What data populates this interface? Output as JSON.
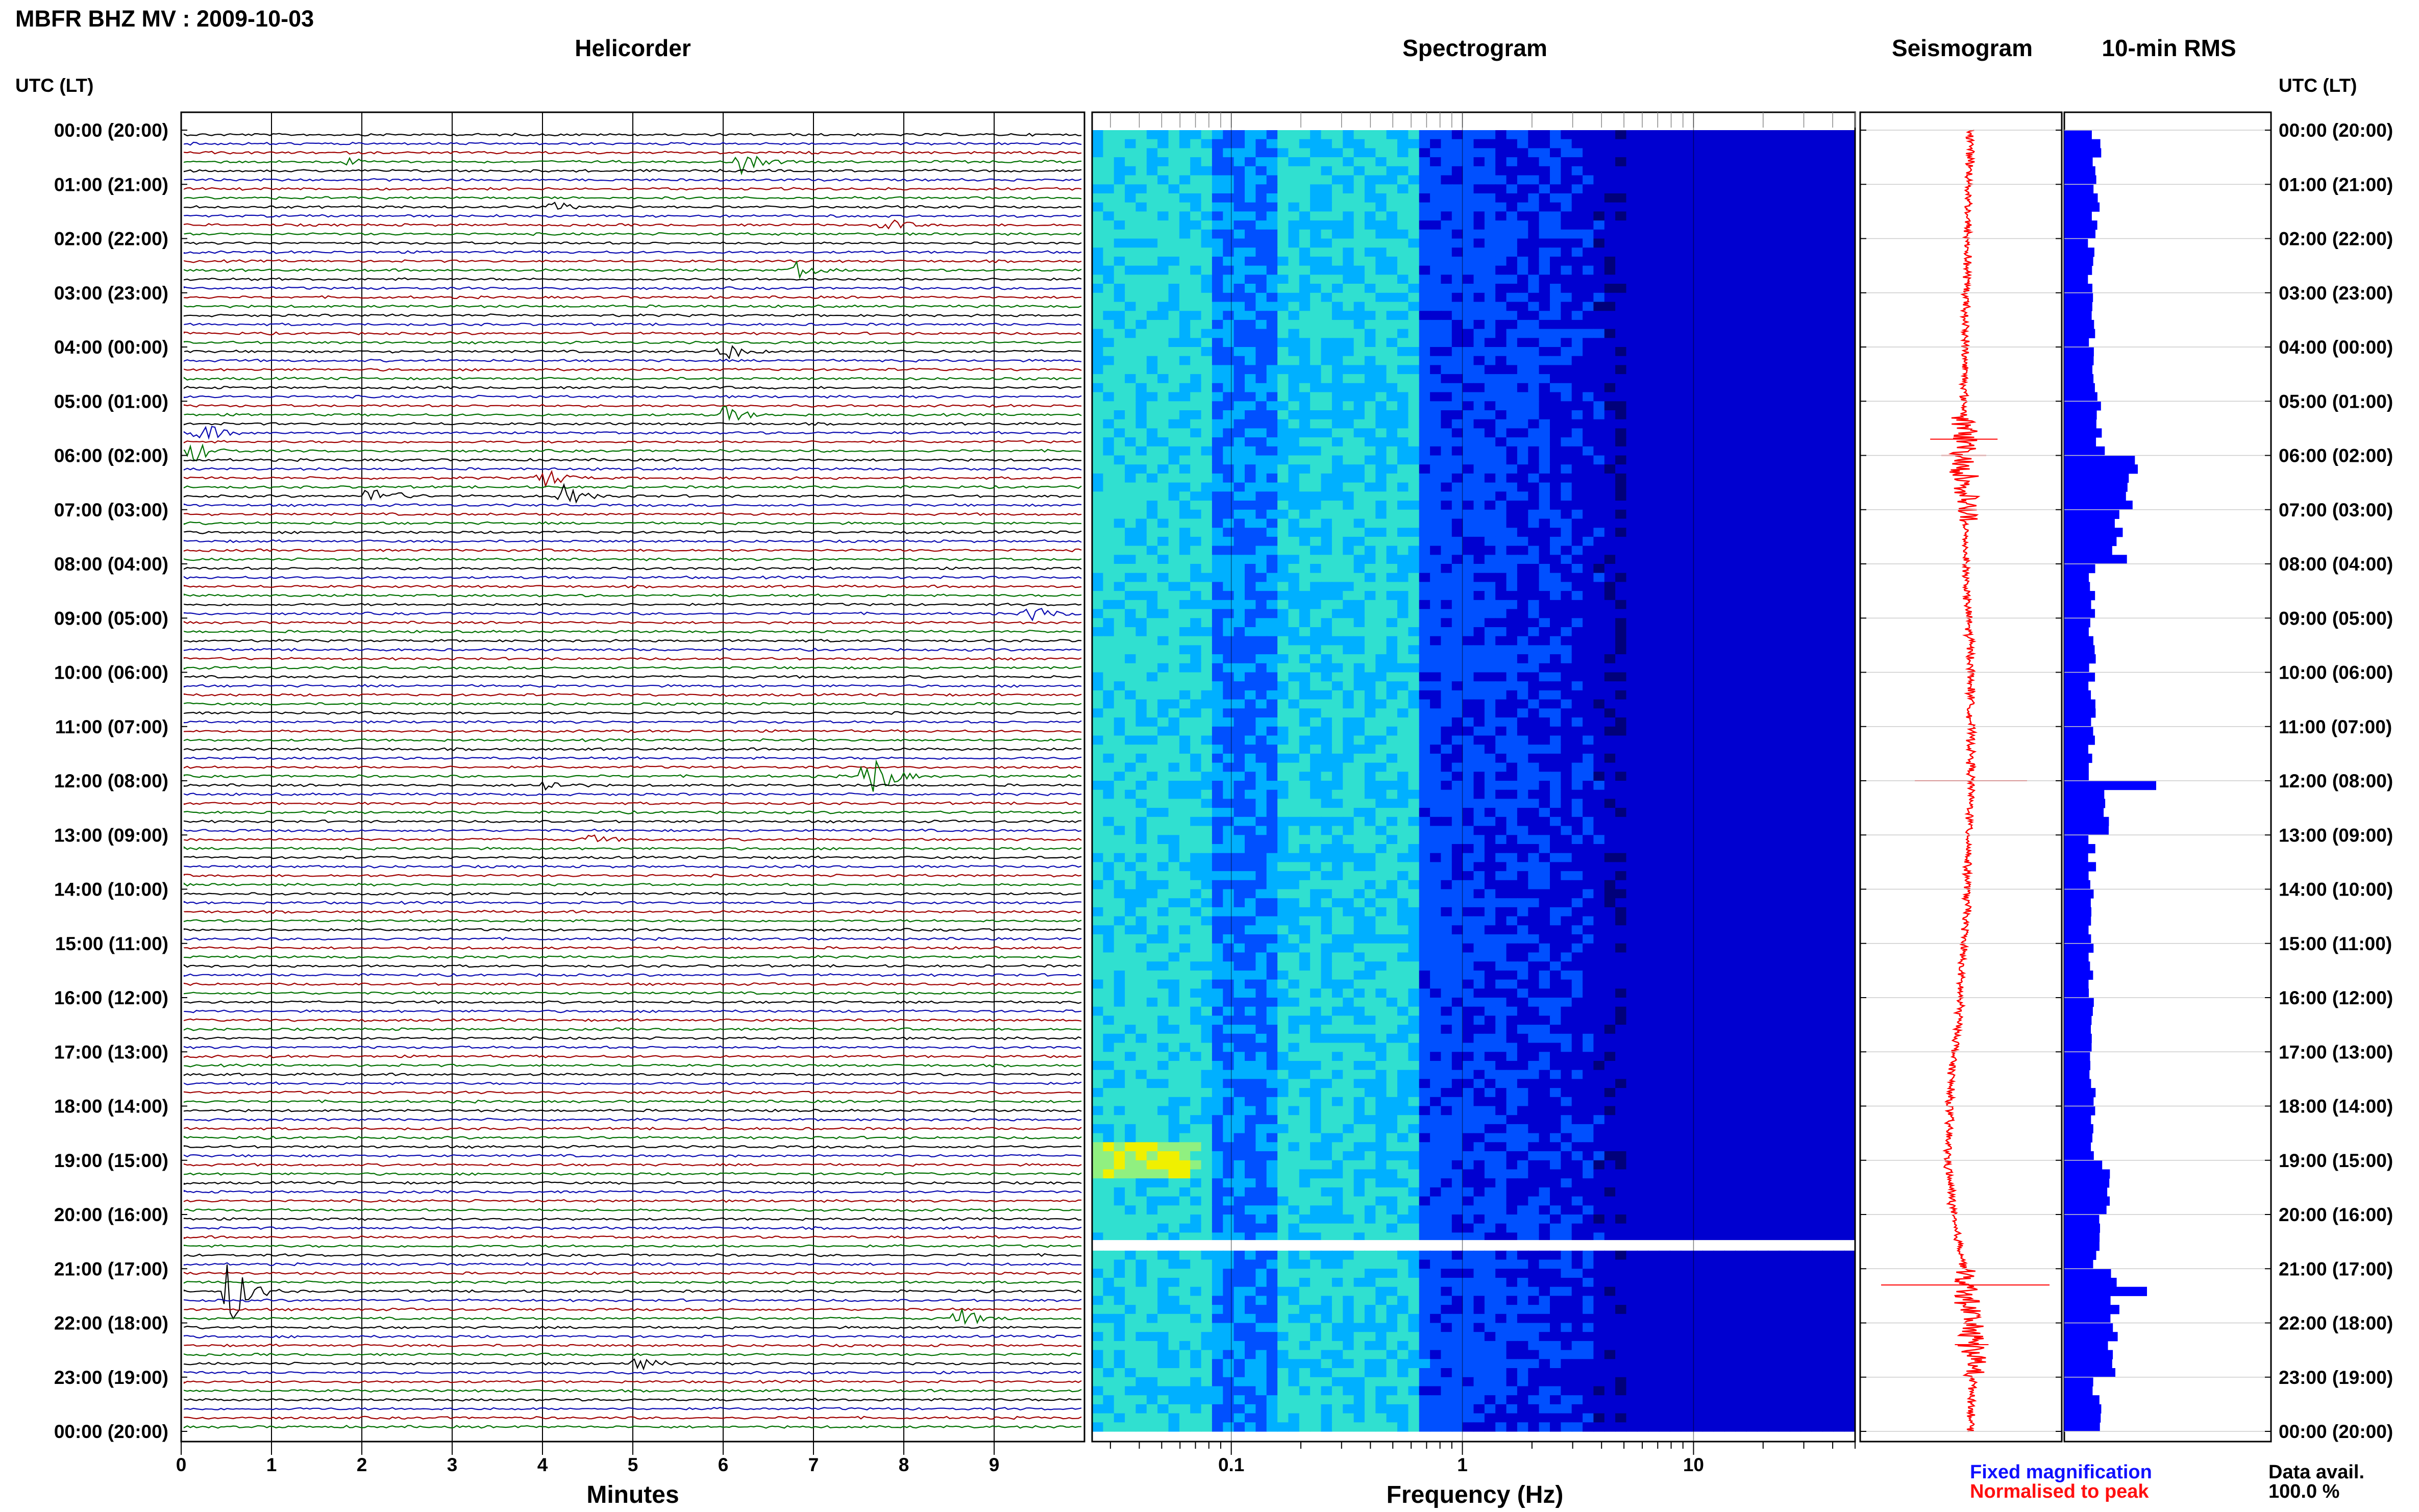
{
  "title": "MBFR BHZ MV : 2009-10-03",
  "panels": {
    "helicorder": "Helicorder",
    "spectrogram": "Spectrogram",
    "seismogram": "Seismogram",
    "rms": "10-min RMS"
  },
  "axis_label_left": "UTC (LT)",
  "axis_label_right": "UTC (LT)",
  "time_labels": [
    "00:00 (20:00)",
    "01:00 (21:00)",
    "02:00 (22:00)",
    "03:00 (23:00)",
    "04:00 (00:00)",
    "05:00 (01:00)",
    "06:00 (02:00)",
    "07:00 (03:00)",
    "08:00 (04:00)",
    "09:00 (05:00)",
    "10:00 (06:00)",
    "11:00 (07:00)",
    "12:00 (08:00)",
    "13:00 (09:00)",
    "14:00 (10:00)",
    "15:00 (11:00)",
    "16:00 (12:00)",
    "17:00 (13:00)",
    "18:00 (14:00)",
    "19:00 (15:00)",
    "20:00 (16:00)",
    "21:00 (17:00)",
    "22:00 (18:00)",
    "23:00 (19:00)",
    "00:00 (20:00)"
  ],
  "helicorder_x_ticks": [
    "0",
    "1",
    "2",
    "3",
    "4",
    "5",
    "6",
    "7",
    "8",
    "9"
  ],
  "helicorder_xlabel": "Minutes",
  "spectrogram_x_ticks": [
    "0.1",
    "1",
    "10"
  ],
  "spectrogram_xlabel": "Frequency (Hz)",
  "legend": {
    "fixed": "Fixed magnification",
    "normalised": "Normalised to peak"
  },
  "data_avail_label": "Data avail.",
  "data_avail_value": "100.0 %",
  "colors": {
    "trace_cycle": [
      "#000000",
      "#0b0bb0",
      "#a00000",
      "#007000"
    ],
    "seismogram": "#ff0000",
    "rms_bar": "#0000ff",
    "legend_fixed": "#1010ff",
    "legend_normalised": "#ff1010"
  },
  "chart_data": [
    {
      "type": "line",
      "name": "helicorder",
      "title": "Helicorder",
      "xlabel": "Minutes",
      "x_ticks": [
        0,
        1,
        2,
        3,
        4,
        5,
        6,
        7,
        8,
        9
      ],
      "xlim": [
        0,
        10
      ],
      "rows": 144,
      "minutes_per_row": 10,
      "events": [
        {
          "hour": 0.5,
          "minute": 6.2,
          "amp": 0.8
        },
        {
          "hour": 0.5,
          "minute": 1.8,
          "amp": 0.3
        },
        {
          "hour": 1.3,
          "minute": 4.1,
          "amp": 0.4
        },
        {
          "hour": 1.6,
          "minute": 7.8,
          "amp": 0.5
        },
        {
          "hour": 2.5,
          "minute": 6.8,
          "amp": 0.6
        },
        {
          "hour": 4.0,
          "minute": 6.0,
          "amp": 0.7
        },
        {
          "hour": 5.1,
          "minute": 6.0,
          "amp": 0.8
        },
        {
          "hour": 5.5,
          "minute": 0.2,
          "amp": 0.9
        },
        {
          "hour": 5.9,
          "minute": 0.1,
          "amp": 1.0
        },
        {
          "hour": 6.3,
          "minute": 4.0,
          "amp": 0.9
        },
        {
          "hour": 6.6,
          "minute": 2.1,
          "amp": 1.1
        },
        {
          "hour": 6.6,
          "minute": 4.2,
          "amp": 1.0
        },
        {
          "hour": 8.8,
          "minute": 9.4,
          "amp": 0.8
        },
        {
          "hour": 11.8,
          "minute": 7.6,
          "amp": 2.4
        },
        {
          "hour": 12.0,
          "minute": 4.0,
          "amp": 0.5
        },
        {
          "hour": 13.0,
          "minute": 4.5,
          "amp": 0.4
        },
        {
          "hour": 21.4,
          "minute": 0.5,
          "amp": 3.2
        },
        {
          "hour": 21.9,
          "minute": 8.6,
          "amp": 0.9
        },
        {
          "hour": 22.7,
          "minute": 5.0,
          "amp": 0.6
        }
      ]
    },
    {
      "type": "heatmap",
      "name": "spectrogram",
      "title": "Spectrogram",
      "xlabel": "Frequency (Hz)",
      "x_scale": "log",
      "xlim": [
        0.025,
        50
      ],
      "x_ticks": [
        0.1,
        1,
        10
      ],
      "ylim_hours": [
        0,
        24
      ],
      "gap_hour": 20.5,
      "energy_band_hz": [
        0.15,
        0.6
      ],
      "high_energy_hours": [
        [
          18.6,
          19.3
        ]
      ],
      "colormap": [
        "#00007a",
        "#0000d0",
        "#0050ff",
        "#00b0ff",
        "#30e0d0",
        "#90f080",
        "#f0f000"
      ]
    },
    {
      "type": "line",
      "name": "seismogram",
      "title": "Seismogram",
      "series_hours": [
        0,
        2,
        4,
        6,
        8,
        10,
        12,
        14,
        16,
        18,
        19,
        20,
        21,
        22,
        23,
        24
      ],
      "series_offset": [
        0.0,
        -0.05,
        -0.08,
        -0.1,
        -0.07,
        0.0,
        0.0,
        -0.05,
        -0.15,
        -0.3,
        -0.32,
        -0.25,
        -0.1,
        0.0,
        0.03,
        0.0
      ],
      "spikes": [
        {
          "hour": 5.7,
          "amp": 0.3
        },
        {
          "hour": 6.0,
          "amp": 0.2
        },
        {
          "hour": 12.0,
          "amp": 0.5
        },
        {
          "hour": 21.3,
          "amp": 0.75
        },
        {
          "hour": 22.4,
          "amp": 0.15
        }
      ]
    },
    {
      "type": "bar",
      "name": "rms",
      "title": "10-min RMS",
      "orientation": "horizontal",
      "bins_per_hour": 6,
      "values_hourly": [
        0.35,
        0.35,
        0.3,
        0.3,
        0.35,
        0.4,
        0.75,
        0.6,
        0.3,
        0.3,
        0.3,
        0.3,
        0.5,
        0.3,
        0.3,
        0.3,
        0.3,
        0.3,
        0.3,
        0.45,
        0.35,
        0.55,
        0.55,
        0.35
      ],
      "peaks": [
        {
          "hour": 12.0,
          "value": 1.0
        },
        {
          "hour": 21.3,
          "value": 0.9
        },
        {
          "hour": 6.2,
          "value": 0.8
        }
      ],
      "xlim": [
        0,
        1.0
      ]
    }
  ]
}
